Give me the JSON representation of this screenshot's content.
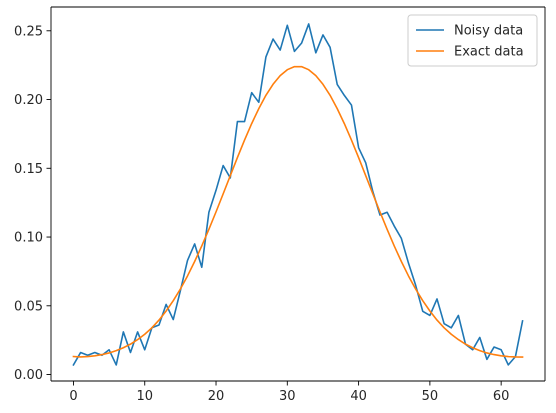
{
  "chart_data": {
    "type": "line",
    "title": "",
    "xlabel": "",
    "ylabel": "",
    "xlim": [
      -3.15,
      66.15
    ],
    "ylim": [
      -0.0047,
      0.2673
    ],
    "xticks": [
      0,
      10,
      20,
      30,
      40,
      50,
      60
    ],
    "yticks": [
      0.0,
      0.05,
      0.1,
      0.15,
      0.2,
      0.25
    ],
    "ytick_labels": [
      "0.00",
      "0.05",
      "0.10",
      "0.15",
      "0.20",
      "0.25"
    ],
    "grid": false,
    "legend_position": "top-right",
    "x": [
      0,
      1,
      2,
      3,
      4,
      5,
      6,
      7,
      8,
      9,
      10,
      11,
      12,
      13,
      14,
      15,
      16,
      17,
      18,
      19,
      20,
      21,
      22,
      23,
      24,
      25,
      26,
      27,
      28,
      29,
      30,
      31,
      32,
      33,
      34,
      35,
      36,
      37,
      38,
      39,
      40,
      41,
      42,
      43,
      44,
      45,
      46,
      47,
      48,
      49,
      50,
      51,
      52,
      53,
      54,
      55,
      56,
      57,
      58,
      59,
      60,
      61,
      62,
      63
    ],
    "series": [
      {
        "name": "Noisy data",
        "color": "#1f77b4",
        "values": [
          0.007,
          0.016,
          0.014,
          0.016,
          0.014,
          0.018,
          0.007,
          0.031,
          0.016,
          0.031,
          0.018,
          0.034,
          0.036,
          0.051,
          0.04,
          0.061,
          0.083,
          0.095,
          0.078,
          0.118,
          0.134,
          0.152,
          0.143,
          0.184,
          0.184,
          0.205,
          0.198,
          0.231,
          0.244,
          0.236,
          0.254,
          0.235,
          0.241,
          0.255,
          0.234,
          0.247,
          0.238,
          0.211,
          0.203,
          0.196,
          0.165,
          0.154,
          0.133,
          0.116,
          0.118,
          0.108,
          0.099,
          0.081,
          0.065,
          0.046,
          0.043,
          0.055,
          0.037,
          0.034,
          0.043,
          0.022,
          0.018,
          0.027,
          0.011,
          0.02,
          0.018,
          0.007,
          0.013,
          0.039
        ]
      },
      {
        "name": "Exact data",
        "color": "#ff7f0e",
        "values": [
          0.0131,
          0.0128,
          0.0131,
          0.0136,
          0.0145,
          0.0157,
          0.0174,
          0.0195,
          0.0221,
          0.0254,
          0.0293,
          0.034,
          0.0396,
          0.0462,
          0.0537,
          0.0622,
          0.0717,
          0.0822,
          0.0935,
          0.1056,
          0.1183,
          0.1314,
          0.1446,
          0.1578,
          0.1705,
          0.1825,
          0.1934,
          0.2031,
          0.2111,
          0.2174,
          0.2217,
          0.2239,
          0.2239,
          0.2217,
          0.2174,
          0.2111,
          0.2031,
          0.1934,
          0.1825,
          0.1705,
          0.1578,
          0.1446,
          0.1314,
          0.1183,
          0.1056,
          0.0935,
          0.0822,
          0.0717,
          0.0622,
          0.0537,
          0.0462,
          0.0396,
          0.034,
          0.0293,
          0.0254,
          0.0221,
          0.0195,
          0.0174,
          0.0157,
          0.0145,
          0.0136,
          0.0131,
          0.0128,
          0.0127
        ]
      }
    ]
  },
  "colors": {
    "axis": "#000000",
    "text": "#262626",
    "legend_border": "#cccccc",
    "background": "#ffffff"
  }
}
